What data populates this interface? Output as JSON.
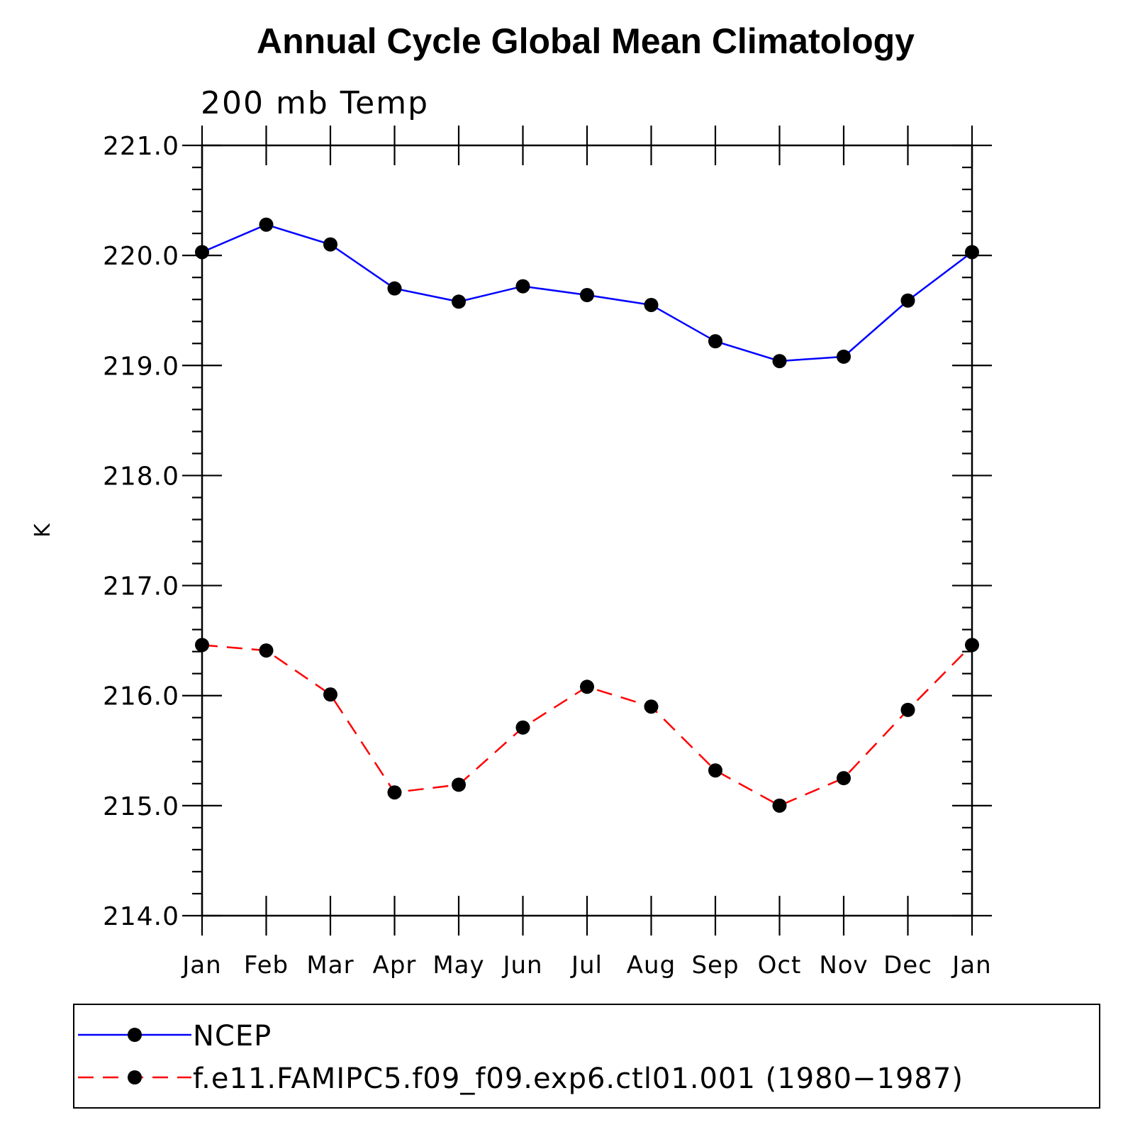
{
  "chart_data": {
    "type": "line",
    "title": "Annual Cycle Global Mean Climatology",
    "subtitle": "200 mb Temp",
    "xlabel": "",
    "ylabel": "K",
    "categories": [
      "Jan",
      "Feb",
      "Mar",
      "Apr",
      "May",
      "Jun",
      "Jul",
      "Aug",
      "Sep",
      "Oct",
      "Nov",
      "Dec",
      "Jan"
    ],
    "ylim": [
      214.0,
      221.0
    ],
    "yticks": [
      "214.0",
      "215.0",
      "216.0",
      "217.0",
      "218.0",
      "219.0",
      "220.0",
      "221.0"
    ],
    "y_minor_step": 0.2,
    "grid": false,
    "legend_position": "bottom",
    "series": [
      {
        "name": "NCEP",
        "color": "#0000ff",
        "line_style": "solid",
        "marker": "filled-circle",
        "values": [
          220.03,
          220.28,
          220.1,
          219.7,
          219.58,
          219.72,
          219.64,
          219.55,
          219.22,
          219.04,
          219.08,
          219.59,
          220.03
        ]
      },
      {
        "name": "f.e11.FAMIPC5.f09_f09.exp6.ctl01.001 (1980−1987)",
        "color": "#ff0000",
        "line_style": "dashed",
        "marker": "filled-circle",
        "values": [
          216.46,
          216.41,
          216.01,
          215.12,
          215.19,
          215.71,
          216.08,
          215.9,
          215.32,
          215.0,
          215.25,
          215.87,
          216.46
        ]
      }
    ]
  }
}
